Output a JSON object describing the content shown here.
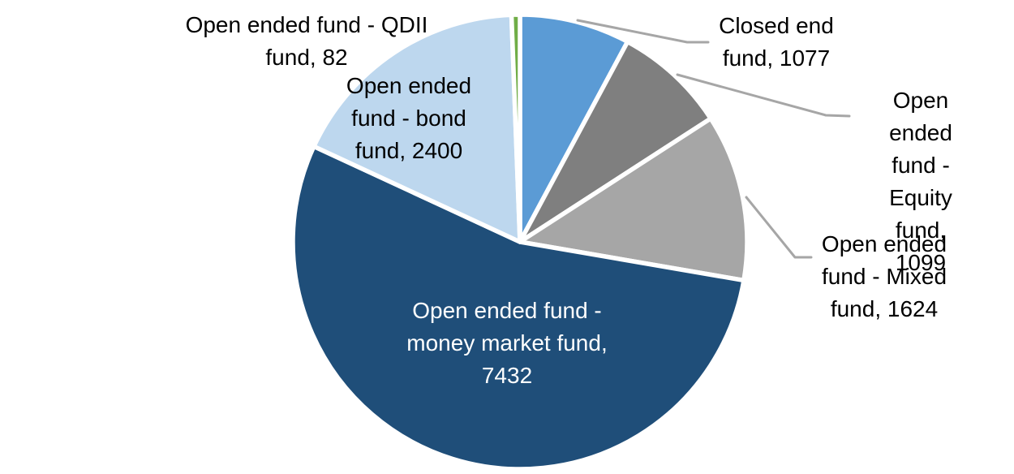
{
  "page": {
    "background_color": "#FFFFFF"
  },
  "chart_data": {
    "type": "pie",
    "title": "",
    "legend_position": "none",
    "direction": "clockwise",
    "start_angle_deg": 0,
    "total": 13714,
    "slice_border_color": "#FFFFFF",
    "leader_line_color": "#A6A6A6",
    "categories": [
      "Closed end fund",
      "Open ended fund - Equity fund",
      "Open ended fund - Mixed fund",
      "Open ended fund - money market fund",
      "Open ended fund - bond fund",
      "Open ended fund - QDII fund"
    ],
    "values": [
      1077,
      1099,
      1624,
      7432,
      2400,
      82
    ],
    "segments": [
      {
        "label": "Closed end fund",
        "value": 1077,
        "color": "#5B9BD5",
        "text_color": "#000000",
        "display": "Closed end\nfund, 1077"
      },
      {
        "label": "Open ended fund - Equity fund",
        "value": 1099,
        "color": "#7F7F7F",
        "text_color": "#000000",
        "display": "Open ended\nfund - Equity\nfund, 1099"
      },
      {
        "label": "Open ended fund - Mixed fund",
        "value": 1624,
        "color": "#A6A6A6",
        "text_color": "#000000",
        "display": "Open ended\nfund - Mixed\nfund, 1624"
      },
      {
        "label": "Open ended fund - money market fund",
        "value": 7432,
        "color": "#1F4E79",
        "text_color": "#FFFFFF",
        "display": "Open ended fund -\nmoney market fund,\n7432"
      },
      {
        "label": "Open ended fund - bond fund",
        "value": 2400,
        "color": "#BDD7EE",
        "text_color": "#000000",
        "display": "Open ended\nfund - bond\nfund, 2400"
      },
      {
        "label": "Open ended fund - QDII fund",
        "value": 82,
        "color": "#70AD47",
        "text_color": "#000000",
        "display": "Open ended fund - QDII\nfund, 82"
      }
    ]
  }
}
